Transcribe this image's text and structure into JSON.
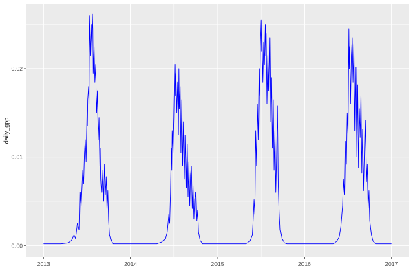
{
  "chart_data": {
    "type": "line",
    "title": "",
    "xlabel": "",
    "ylabel": "daily_gpp",
    "legend": "none",
    "grid": true,
    "series_color": "#0000FF",
    "panel_background": "#EBEBEB",
    "grid_color": "#FFFFFF",
    "axis_text_color": "#4D4D4D",
    "tick_color": "#333333",
    "xlim": [
      2012.8,
      2017.2
    ],
    "ylim": [
      -0.0013,
      0.0273
    ],
    "x_ticks": [
      {
        "value": 2013,
        "label": "2013"
      },
      {
        "value": 2014,
        "label": "2014"
      },
      {
        "value": 2015,
        "label": "2015"
      },
      {
        "value": 2016,
        "label": "2016"
      },
      {
        "value": 2017,
        "label": "2017"
      }
    ],
    "x_minor": [
      2013.5,
      2014.5,
      2015.5,
      2016.5
    ],
    "y_ticks": [
      {
        "value": 0,
        "label": "0.00"
      },
      {
        "value": 0.01,
        "label": "0.01"
      },
      {
        "value": 0.02,
        "label": "0.02"
      }
    ],
    "y_minor": [
      0.005,
      0.015,
      0.025
    ],
    "points": [
      [
        2013.0,
        0.0002
      ],
      [
        2013.2,
        0.0002
      ],
      [
        2013.28,
        0.0003
      ],
      [
        2013.32,
        0.0006
      ],
      [
        2013.35,
        0.0012
      ],
      [
        2013.37,
        0.0008
      ],
      [
        2013.39,
        0.0025
      ],
      [
        2013.41,
        0.0018
      ],
      [
        2013.42,
        0.006
      ],
      [
        2013.43,
        0.0045
      ],
      [
        2013.45,
        0.0085
      ],
      [
        2013.46,
        0.007
      ],
      [
        2013.47,
        0.0105
      ],
      [
        2013.48,
        0.012
      ],
      [
        2013.49,
        0.0095
      ],
      [
        2013.5,
        0.015
      ],
      [
        2013.505,
        0.0135
      ],
      [
        2013.51,
        0.0165
      ],
      [
        2013.52,
        0.018
      ],
      [
        2013.525,
        0.016
      ],
      [
        2013.53,
        0.026
      ],
      [
        2013.54,
        0.0215
      ],
      [
        2013.55,
        0.025
      ],
      [
        2013.555,
        0.023
      ],
      [
        2013.56,
        0.0262
      ],
      [
        2013.565,
        0.0245
      ],
      [
        2013.57,
        0.0195
      ],
      [
        2013.58,
        0.0225
      ],
      [
        2013.59,
        0.0185
      ],
      [
        2013.6,
        0.0205
      ],
      [
        2013.605,
        0.017
      ],
      [
        2013.61,
        0.015
      ],
      [
        2013.62,
        0.0175
      ],
      [
        2013.63,
        0.012
      ],
      [
        2013.64,
        0.0145
      ],
      [
        2013.65,
        0.009
      ],
      [
        2013.655,
        0.011
      ],
      [
        2013.66,
        0.0075
      ],
      [
        2013.67,
        0.006
      ],
      [
        2013.68,
        0.0085
      ],
      [
        2013.69,
        0.005
      ],
      [
        2013.7,
        0.0092
      ],
      [
        2013.71,
        0.0058
      ],
      [
        2013.72,
        0.0078
      ],
      [
        2013.73,
        0.004
      ],
      [
        2013.74,
        0.0062
      ],
      [
        2013.75,
        0.0028
      ],
      [
        2013.76,
        0.0012
      ],
      [
        2013.78,
        0.0005
      ],
      [
        2013.8,
        0.0002
      ],
      [
        2014.3,
        0.0002
      ],
      [
        2014.36,
        0.0004
      ],
      [
        2014.4,
        0.0008
      ],
      [
        2014.42,
        0.0015
      ],
      [
        2014.44,
        0.0035
      ],
      [
        2014.45,
        0.0025
      ],
      [
        2014.46,
        0.006
      ],
      [
        2014.47,
        0.011
      ],
      [
        2014.475,
        0.0085
      ],
      [
        2014.48,
        0.013
      ],
      [
        2014.49,
        0.0105
      ],
      [
        2014.5,
        0.0145
      ],
      [
        2014.51,
        0.0205
      ],
      [
        2014.515,
        0.017
      ],
      [
        2014.52,
        0.0195
      ],
      [
        2014.53,
        0.015
      ],
      [
        2014.54,
        0.0185
      ],
      [
        2014.55,
        0.0125
      ],
      [
        2014.555,
        0.02
      ],
      [
        2014.56,
        0.0155
      ],
      [
        2014.57,
        0.018
      ],
      [
        2014.58,
        0.0105
      ],
      [
        2014.59,
        0.0165
      ],
      [
        2014.6,
        0.009
      ],
      [
        2014.61,
        0.014
      ],
      [
        2014.62,
        0.0075
      ],
      [
        2014.63,
        0.0125
      ],
      [
        2014.64,
        0.0065
      ],
      [
        2014.65,
        0.0115
      ],
      [
        2014.66,
        0.0055
      ],
      [
        2014.67,
        0.0095
      ],
      [
        2014.68,
        0.0045
      ],
      [
        2014.69,
        0.008
      ],
      [
        2014.7,
        0.009
      ],
      [
        2014.71,
        0.0042
      ],
      [
        2014.72,
        0.0068
      ],
      [
        2014.73,
        0.003
      ],
      [
        2014.74,
        0.0052
      ],
      [
        2014.75,
        0.006
      ],
      [
        2014.76,
        0.0028
      ],
      [
        2014.77,
        0.004
      ],
      [
        2014.78,
        0.0015
      ],
      [
        2014.8,
        0.0006
      ],
      [
        2014.83,
        0.0002
      ],
      [
        2015.33,
        0.0002
      ],
      [
        2015.37,
        0.0005
      ],
      [
        2015.4,
        0.0012
      ],
      [
        2015.41,
        0.003
      ],
      [
        2015.42,
        0.0052
      ],
      [
        2015.43,
        0.0035
      ],
      [
        2015.44,
        0.013
      ],
      [
        2015.45,
        0.009
      ],
      [
        2015.46,
        0.016
      ],
      [
        2015.47,
        0.012
      ],
      [
        2015.48,
        0.02
      ],
      [
        2015.485,
        0.017
      ],
      [
        2015.49,
        0.0225
      ],
      [
        2015.5,
        0.0255
      ],
      [
        2015.505,
        0.022
      ],
      [
        2015.51,
        0.024
      ],
      [
        2015.52,
        0.0185
      ],
      [
        2015.53,
        0.023
      ],
      [
        2015.54,
        0.0205
      ],
      [
        2015.55,
        0.025
      ],
      [
        2015.555,
        0.0215
      ],
      [
        2015.56,
        0.024
      ],
      [
        2015.57,
        0.016
      ],
      [
        2015.58,
        0.0215
      ],
      [
        2015.59,
        0.0175
      ],
      [
        2015.6,
        0.0235
      ],
      [
        2015.61,
        0.014
      ],
      [
        2015.62,
        0.019
      ],
      [
        2015.63,
        0.011
      ],
      [
        2015.64,
        0.0165
      ],
      [
        2015.65,
        0.0085
      ],
      [
        2015.66,
        0.013
      ],
      [
        2015.67,
        0.006
      ],
      [
        2015.68,
        0.01
      ],
      [
        2015.69,
        0.0158
      ],
      [
        2015.7,
        0.0068
      ],
      [
        2015.71,
        0.0038
      ],
      [
        2015.72,
        0.0018
      ],
      [
        2015.74,
        0.0008
      ],
      [
        2015.77,
        0.0003
      ],
      [
        2015.8,
        0.0002
      ],
      [
        2016.33,
        0.0002
      ],
      [
        2016.37,
        0.0005
      ],
      [
        2016.4,
        0.001
      ],
      [
        2016.42,
        0.0022
      ],
      [
        2016.44,
        0.0045
      ],
      [
        2016.45,
        0.0075
      ],
      [
        2016.46,
        0.0058
      ],
      [
        2016.47,
        0.0118
      ],
      [
        2016.48,
        0.0092
      ],
      [
        2016.49,
        0.015
      ],
      [
        2016.5,
        0.0125
      ],
      [
        2016.51,
        0.0245
      ],
      [
        2016.515,
        0.02
      ],
      [
        2016.52,
        0.0225
      ],
      [
        2016.53,
        0.016
      ],
      [
        2016.54,
        0.0215
      ],
      [
        2016.55,
        0.0235
      ],
      [
        2016.56,
        0.0185
      ],
      [
        2016.57,
        0.0228
      ],
      [
        2016.58,
        0.013
      ],
      [
        2016.59,
        0.0202
      ],
      [
        2016.6,
        0.01
      ],
      [
        2016.61,
        0.0182
      ],
      [
        2016.62,
        0.0088
      ],
      [
        2016.63,
        0.0155
      ],
      [
        2016.64,
        0.0122
      ],
      [
        2016.65,
        0.0172
      ],
      [
        2016.66,
        0.0082
      ],
      [
        2016.67,
        0.0132
      ],
      [
        2016.68,
        0.0062
      ],
      [
        2016.69,
        0.0102
      ],
      [
        2016.7,
        0.0142
      ],
      [
        2016.71,
        0.0072
      ],
      [
        2016.72,
        0.0092
      ],
      [
        2016.73,
        0.0042
      ],
      [
        2016.74,
        0.0062
      ],
      [
        2016.75,
        0.0028
      ],
      [
        2016.77,
        0.0012
      ],
      [
        2016.79,
        0.0005
      ],
      [
        2016.82,
        0.0002
      ],
      [
        2017.0,
        0.0002
      ]
    ]
  }
}
